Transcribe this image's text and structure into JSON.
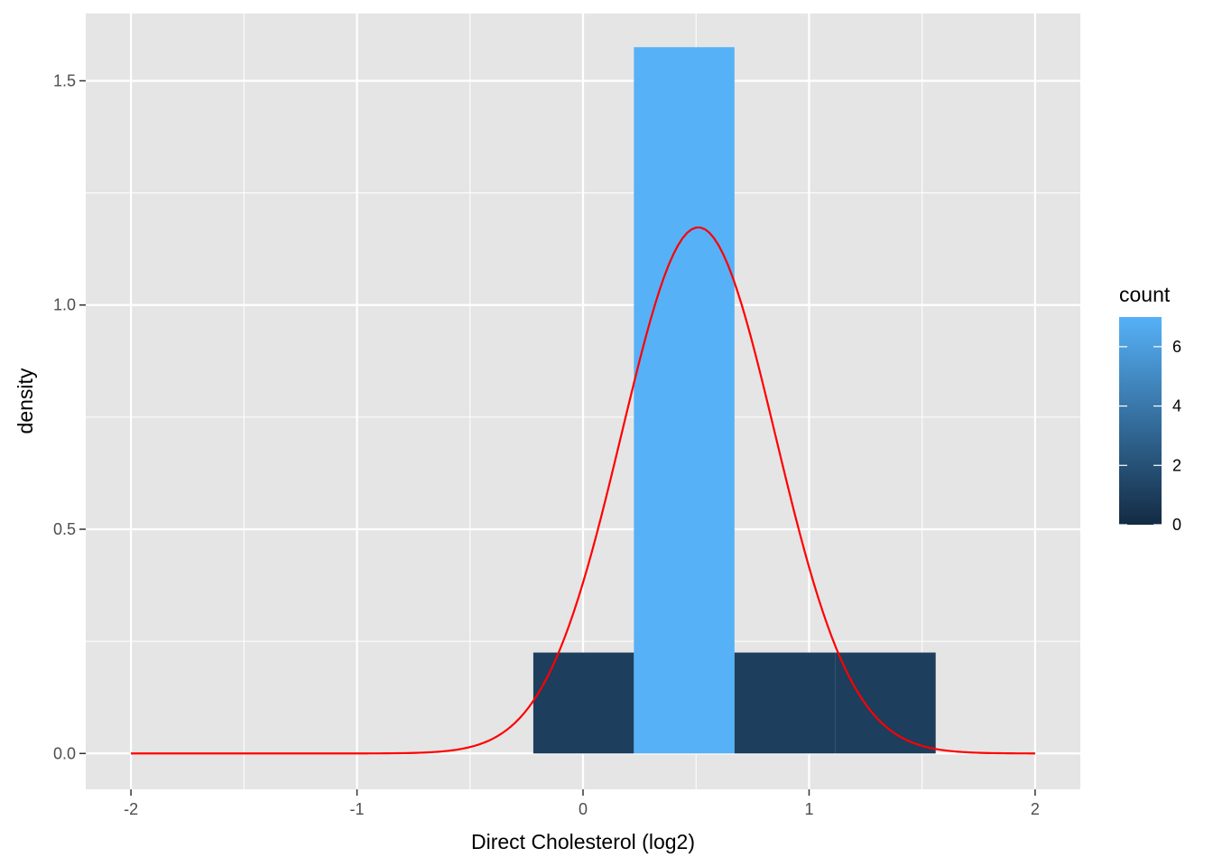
{
  "chart_data": {
    "type": "bar",
    "title": "",
    "xlabel": "Direct Cholesterol (log2)",
    "ylabel": "density",
    "xlim": [
      -2.2,
      2.2
    ],
    "ylim": [
      -0.08,
      1.65
    ],
    "x_ticks": [
      -2,
      -1,
      0,
      1,
      2
    ],
    "x_tick_labels": [
      "-2",
      "-1",
      "0",
      "1",
      "2"
    ],
    "y_ticks": [
      0,
      0.5,
      1.0,
      1.5
    ],
    "y_tick_labels": [
      "0.0",
      "0.5",
      "1.0",
      "1.5"
    ],
    "grid": true,
    "histogram_bins": [
      {
        "xmin": -0.22,
        "xmax": 0.225,
        "density": 0.225,
        "count": 1
      },
      {
        "xmin": 0.225,
        "xmax": 0.67,
        "density": 1.575,
        "count": 7
      },
      {
        "xmin": 0.67,
        "xmax": 1.115,
        "density": 0.225,
        "count": 1
      },
      {
        "xmin": 1.115,
        "xmax": 1.56,
        "density": 0.225,
        "count": 1
      }
    ],
    "density_curve": {
      "type": "normal",
      "mean": 0.51,
      "sd": 0.34,
      "x_range": [
        -2,
        2
      ],
      "color": "#ff0000"
    },
    "legend": {
      "title": "count",
      "position": "right",
      "ticks": [
        0,
        2,
        4,
        6
      ],
      "tick_labels": [
        "0",
        "2",
        "4",
        "6"
      ],
      "range": [
        0,
        7
      ],
      "low_color": "#132b43",
      "high_color": "#56b1f7"
    },
    "colors": {
      "panel_background": "#e5e5e5",
      "grid": "#ffffff"
    }
  }
}
